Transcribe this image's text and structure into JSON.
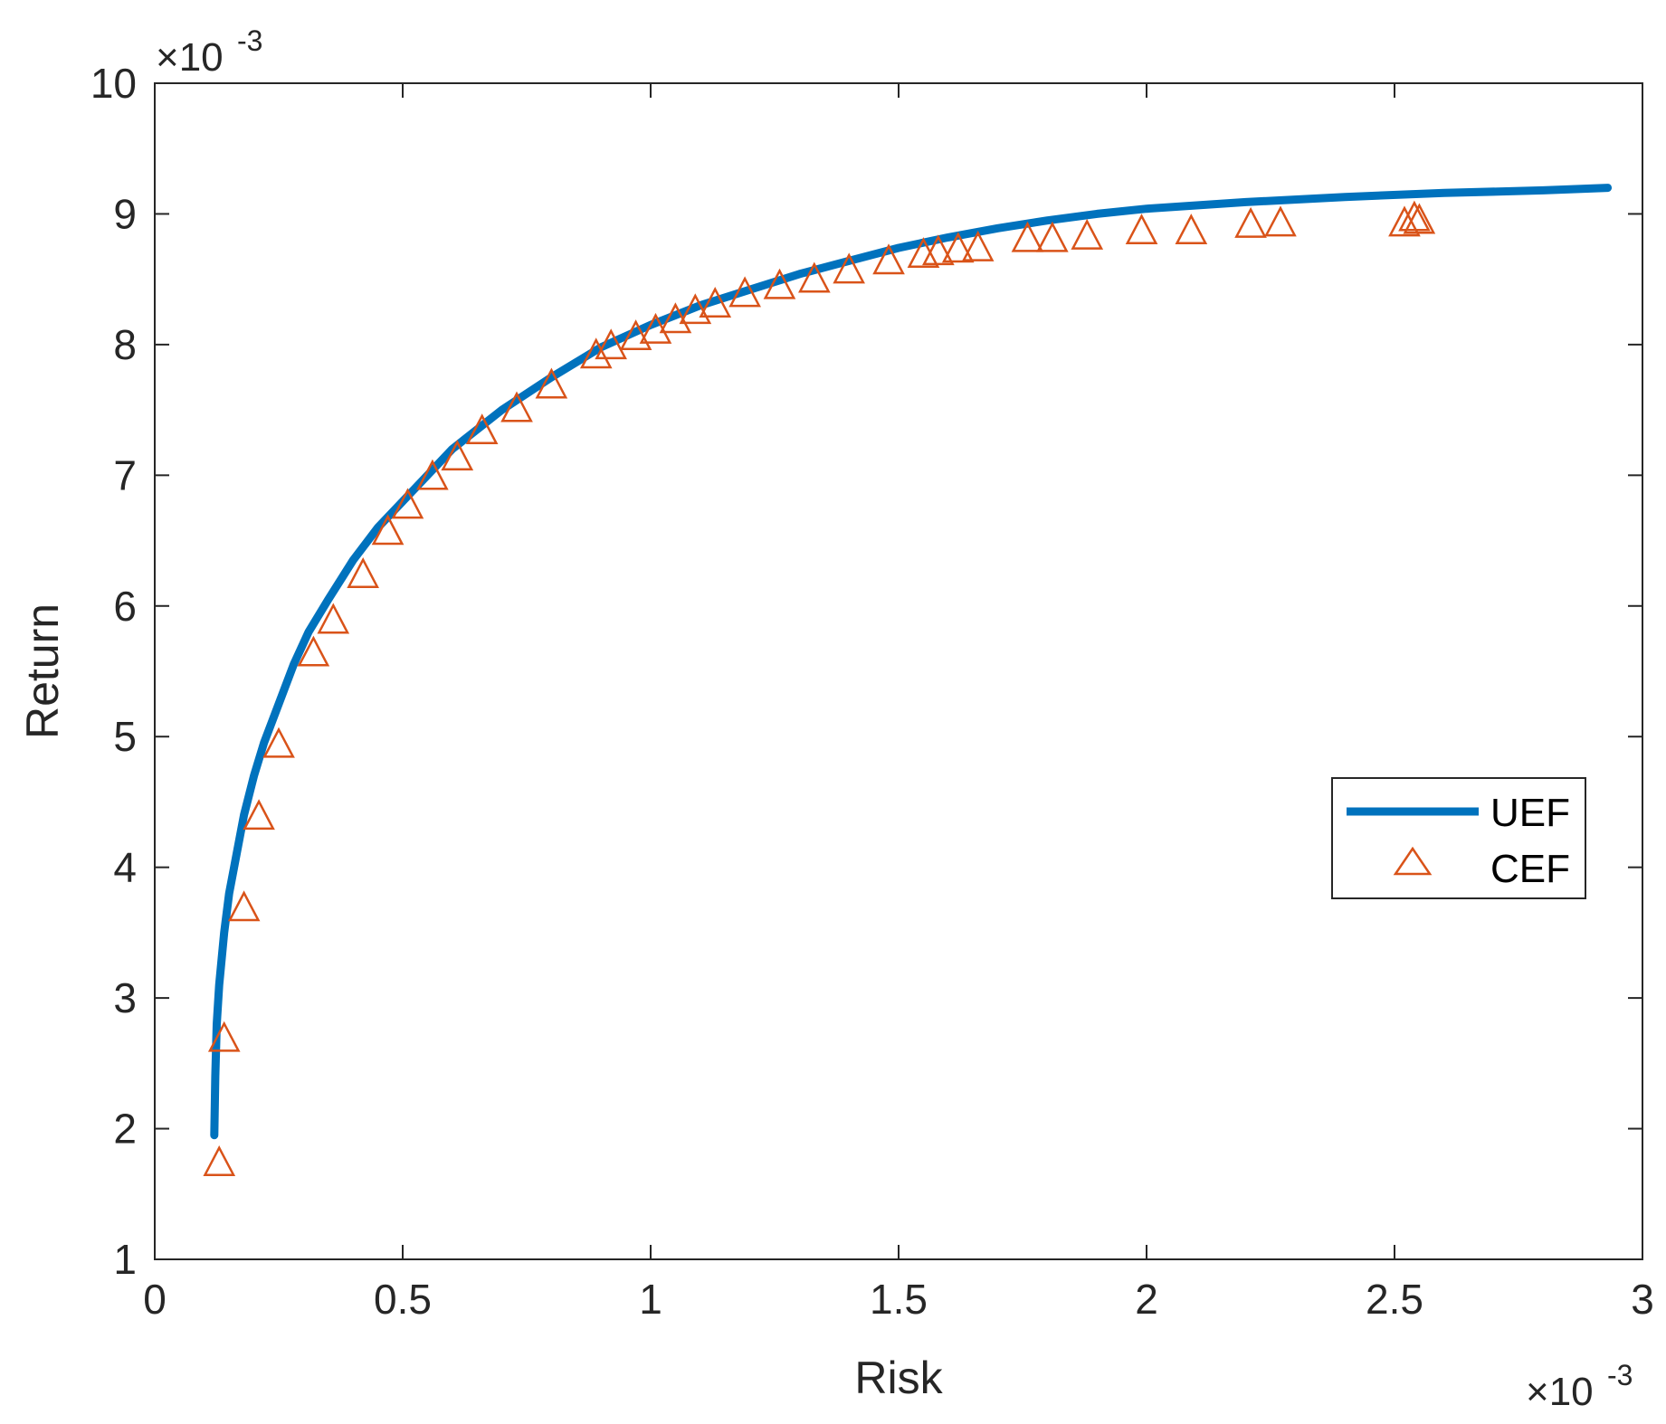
{
  "chart_data": {
    "type": "line",
    "title": "",
    "xlabel": "Risk",
    "ylabel": "Return",
    "x_multiplier": "×10",
    "x_exponent": "-3",
    "y_multiplier": "×10",
    "y_exponent": "-3",
    "xlim": [
      0,
      3
    ],
    "ylim": [
      1,
      10
    ],
    "xticks": [
      0,
      0.5,
      1,
      1.5,
      2,
      2.5,
      3
    ],
    "xtick_labels": [
      "0",
      "0.5",
      "1",
      "1.5",
      "2",
      "2.5",
      "3"
    ],
    "yticks": [
      1,
      2,
      3,
      4,
      5,
      6,
      7,
      8,
      9,
      10
    ],
    "ytick_labels": [
      "1",
      "2",
      "3",
      "4",
      "5",
      "6",
      "7",
      "8",
      "9",
      "10"
    ],
    "grid": false,
    "legend_position": "right",
    "series": [
      {
        "name": "UEF",
        "style": "line",
        "color": "#0072BD",
        "points": [
          [
            0.12,
            1.95
          ],
          [
            0.122,
            2.4
          ],
          [
            0.125,
            2.8
          ],
          [
            0.13,
            3.1
          ],
          [
            0.14,
            3.5
          ],
          [
            0.15,
            3.8
          ],
          [
            0.165,
            4.1
          ],
          [
            0.18,
            4.4
          ],
          [
            0.2,
            4.7
          ],
          [
            0.22,
            4.95
          ],
          [
            0.25,
            5.25
          ],
          [
            0.28,
            5.55
          ],
          [
            0.31,
            5.8
          ],
          [
            0.35,
            6.05
          ],
          [
            0.4,
            6.35
          ],
          [
            0.45,
            6.6
          ],
          [
            0.5,
            6.8
          ],
          [
            0.6,
            7.2
          ],
          [
            0.7,
            7.5
          ],
          [
            0.8,
            7.75
          ],
          [
            0.9,
            7.98
          ],
          [
            1.0,
            8.15
          ],
          [
            1.1,
            8.3
          ],
          [
            1.2,
            8.42
          ],
          [
            1.3,
            8.54
          ],
          [
            1.4,
            8.64
          ],
          [
            1.5,
            8.74
          ],
          [
            1.6,
            8.82
          ],
          [
            1.7,
            8.89
          ],
          [
            1.8,
            8.95
          ],
          [
            1.9,
            9.0
          ],
          [
            2.0,
            9.04
          ],
          [
            2.2,
            9.09
          ],
          [
            2.4,
            9.13
          ],
          [
            2.6,
            9.16
          ],
          [
            2.8,
            9.18
          ],
          [
            2.93,
            9.2
          ]
        ]
      },
      {
        "name": "CEF",
        "style": "marker-triangle",
        "color": "#D95319",
        "points": [
          [
            0.13,
            1.75
          ],
          [
            0.14,
            2.7
          ],
          [
            0.18,
            3.7
          ],
          [
            0.21,
            4.4
          ],
          [
            0.25,
            4.95
          ],
          [
            0.32,
            5.65
          ],
          [
            0.36,
            5.9
          ],
          [
            0.42,
            6.25
          ],
          [
            0.47,
            6.58
          ],
          [
            0.51,
            6.78
          ],
          [
            0.56,
            7.0
          ],
          [
            0.61,
            7.15
          ],
          [
            0.66,
            7.35
          ],
          [
            0.73,
            7.52
          ],
          [
            0.8,
            7.7
          ],
          [
            0.89,
            7.93
          ],
          [
            0.92,
            8.0
          ],
          [
            0.97,
            8.07
          ],
          [
            1.01,
            8.12
          ],
          [
            1.05,
            8.2
          ],
          [
            1.09,
            8.27
          ],
          [
            1.13,
            8.32
          ],
          [
            1.19,
            8.4
          ],
          [
            1.26,
            8.46
          ],
          [
            1.33,
            8.51
          ],
          [
            1.4,
            8.58
          ],
          [
            1.48,
            8.65
          ],
          [
            1.55,
            8.7
          ],
          [
            1.58,
            8.72
          ],
          [
            1.62,
            8.74
          ],
          [
            1.66,
            8.75
          ],
          [
            1.76,
            8.82
          ],
          [
            1.81,
            8.82
          ],
          [
            1.88,
            8.84
          ],
          [
            1.99,
            8.88
          ],
          [
            2.09,
            8.88
          ],
          [
            2.21,
            8.93
          ],
          [
            2.27,
            8.94
          ],
          [
            2.52,
            8.94
          ],
          [
            2.54,
            8.98
          ],
          [
            2.55,
            8.96
          ]
        ]
      }
    ]
  }
}
